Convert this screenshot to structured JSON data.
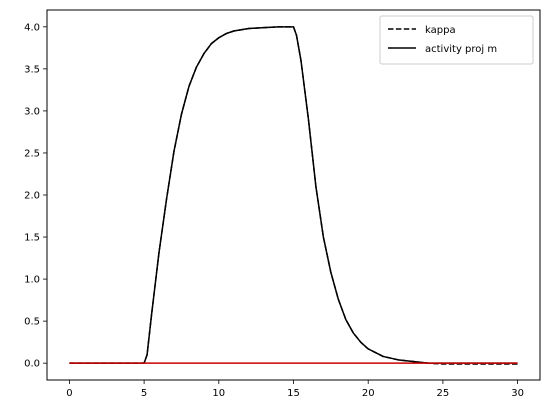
{
  "chart_data": {
    "type": "line",
    "title": "",
    "xlabel": "",
    "ylabel": "",
    "xlim": [
      -1.5,
      31.5
    ],
    "ylim": [
      -0.2,
      4.2
    ],
    "xticks": [
      0,
      5,
      10,
      15,
      20,
      25,
      30
    ],
    "xtick_labels": [
      "0",
      "5",
      "10",
      "15",
      "20",
      "25",
      "30"
    ],
    "yticks": [
      0.0,
      0.5,
      1.0,
      1.5,
      2.0,
      2.5,
      3.0,
      3.5,
      4.0
    ],
    "ytick_labels": [
      "0.0",
      "0.5",
      "1.0",
      "1.5",
      "2.0",
      "2.5",
      "3.0",
      "3.5",
      "4.0"
    ],
    "grid": false,
    "legend_position": "top-right",
    "series": [
      {
        "name": "kappa",
        "style": "dashed",
        "color": "#000000",
        "x": [
          0,
          5,
          5.2,
          5.5,
          6,
          6.5,
          7,
          7.5,
          8,
          8.5,
          9,
          9.5,
          10,
          10.5,
          11,
          12,
          13,
          14,
          15,
          15.2,
          15.5,
          16,
          16.5,
          17,
          17.5,
          18,
          18.5,
          19,
          19.5,
          20,
          21,
          22,
          23,
          24,
          25,
          30
        ],
        "y": [
          0,
          0,
          0.1,
          0.58,
          1.32,
          1.95,
          2.52,
          2.96,
          3.29,
          3.52,
          3.68,
          3.8,
          3.87,
          3.92,
          3.95,
          3.98,
          3.99,
          4.0,
          4.0,
          3.9,
          3.6,
          2.9,
          2.1,
          1.5,
          1.08,
          0.76,
          0.52,
          0.36,
          0.25,
          0.17,
          0.08,
          0.04,
          0.02,
          0.0,
          -0.01,
          -0.01
        ]
      },
      {
        "name": "activity proj m",
        "style": "solid",
        "color": "#000000",
        "x": [
          0,
          5,
          5.2,
          5.5,
          6,
          6.5,
          7,
          7.5,
          8,
          8.5,
          9,
          9.5,
          10,
          10.5,
          11,
          12,
          13,
          14,
          15,
          15.2,
          15.5,
          16,
          16.5,
          17,
          17.5,
          18,
          18.5,
          19,
          19.5,
          20,
          21,
          22,
          23,
          24,
          25,
          30
        ],
        "y": [
          0,
          0,
          0.1,
          0.58,
          1.32,
          1.95,
          2.52,
          2.96,
          3.29,
          3.52,
          3.68,
          3.8,
          3.87,
          3.92,
          3.95,
          3.98,
          3.99,
          4.0,
          4.0,
          3.9,
          3.6,
          2.9,
          2.1,
          1.5,
          1.08,
          0.76,
          0.52,
          0.36,
          0.25,
          0.17,
          0.08,
          0.04,
          0.02,
          0.0,
          0.0,
          0.0
        ]
      },
      {
        "name": "",
        "style": "solid",
        "color": "#cc0000",
        "x": [
          0,
          30
        ],
        "y": [
          0,
          0
        ]
      }
    ]
  }
}
